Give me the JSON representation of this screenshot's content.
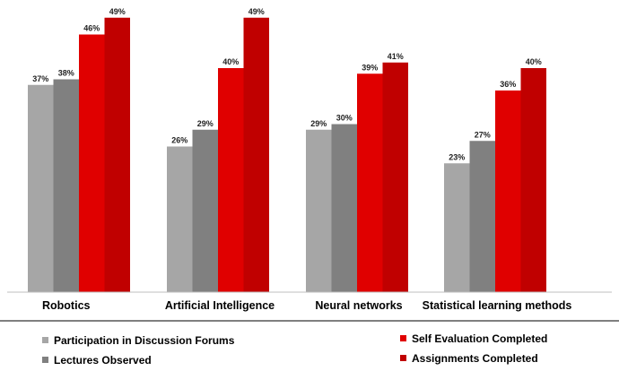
{
  "chart_data": {
    "type": "bar",
    "categories": [
      "Robotics",
      "Artificial Intelligence",
      "Neural networks",
      "Statistical learning methods"
    ],
    "series": [
      {
        "name": "Participation in Discussion Forums",
        "color": "#a6a6a6",
        "values": [
          37,
          26,
          29,
          23
        ]
      },
      {
        "name": "Lectures Observed",
        "color": "#808080",
        "values": [
          38,
          29,
          30,
          27
        ]
      },
      {
        "name": "Self Evaluation Completed",
        "color": "#e00000",
        "values": [
          46,
          40,
          39,
          36
        ]
      },
      {
        "name": "Assignments Completed",
        "color": "#c00000",
        "values": [
          49,
          49,
          41,
          40
        ]
      }
    ],
    "value_suffix": "%",
    "ylim": [
      0,
      50
    ],
    "grid": false,
    "legend_position": "bottom"
  }
}
